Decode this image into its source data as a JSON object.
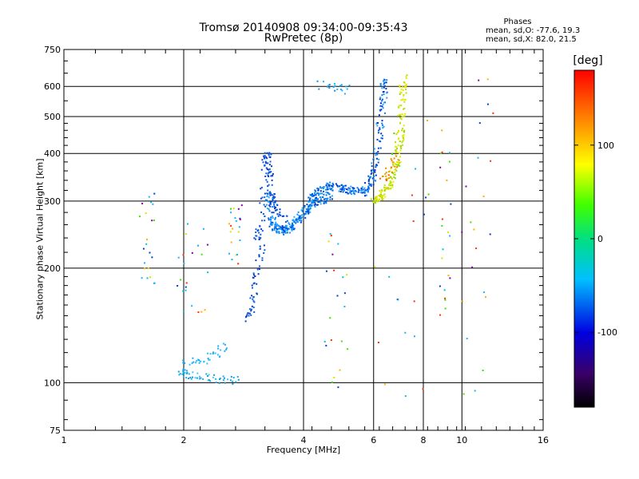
{
  "chart_data": {
    "type": "scatter",
    "title": "Tromsø 20140908 09:34:00-09:35:43",
    "subtitle": "RwPretec (8p)",
    "xlabel": "Frequency [MHz]",
    "ylabel": "Stationary phase Virtual Height [km]",
    "x_scale": "log",
    "y_scale": "log",
    "xlim": [
      1,
      16
    ],
    "ylim": [
      75,
      750
    ],
    "x_ticks": [
      "1",
      "2",
      "4",
      "6",
      "8",
      "10",
      "16"
    ],
    "y_ticks": [
      "750",
      "600",
      "500",
      "400",
      "300",
      "200",
      "100",
      "75"
    ],
    "grid": true,
    "colorbar": {
      "title": "[deg]",
      "range": [
        -180,
        180
      ],
      "tick_labels": [
        "100",
        "0",
        "-100"
      ],
      "tick_values": [
        100,
        0,
        -100
      ]
    },
    "stats": {
      "header": "Phases",
      "line1": "mean, sd,O: -77.6, 19.3",
      "line2": "mean, sd,X:  82.0, 21.5"
    },
    "traces": {
      "o_mode_upper": {
        "f": [
          4.15,
          4.3,
          4.5,
          4.7,
          5.0,
          5.3,
          5.6,
          5.8,
          5.95,
          6.1,
          6.25,
          6.35,
          6.4
        ],
        "h": [
          300,
          315,
          325,
          328,
          325,
          320,
          315,
          322,
          345,
          390,
          470,
          560,
          640
        ]
      },
      "o_mode_lower": {
        "f": [
          3.25,
          3.3,
          3.35,
          3.4,
          3.5,
          3.6,
          3.7,
          3.8,
          3.9,
          4.0,
          4.1,
          4.2,
          4.3,
          4.5,
          4.7
        ],
        "h": [
          320,
          290,
          265,
          255,
          250,
          252,
          255,
          262,
          270,
          278,
          288,
          295,
          300,
          305,
          310
        ]
      },
      "o_mode_cusp": {
        "f": [
          3.05,
          3.1,
          3.15,
          3.2,
          3.22,
          3.25,
          3.28,
          3.3,
          3.35,
          3.45,
          3.6
        ],
        "h": [
          240,
          250,
          280,
          340,
          380,
          395,
          360,
          320,
          295,
          280,
          270
        ]
      },
      "x_mode": {
        "f": [
          6.0,
          6.2,
          6.4,
          6.6,
          6.8,
          6.9,
          7.0,
          7.05,
          7.1,
          7.15
        ],
        "h": [
          300,
          305,
          318,
          335,
          365,
          395,
          440,
          500,
          570,
          640
        ]
      },
      "x_mode_orange": {
        "f": [
          6.3,
          6.5,
          6.7,
          6.85
        ],
        "h": [
          340,
          355,
          370,
          390
        ]
      },
      "e_region_low": {
        "f": [
          1.95,
          2.0,
          2.05,
          2.15,
          2.3,
          2.45,
          2.6,
          2.75
        ],
        "h": [
          107,
          106,
          105,
          104,
          103,
          102,
          101,
          102
        ]
      },
      "e_region_rising": {
        "f": [
          2.0,
          2.1,
          2.2,
          2.3,
          2.4,
          2.5,
          2.55
        ],
        "h": [
          112,
          113,
          114,
          116,
          119,
          123,
          126
        ]
      },
      "f1_rise": {
        "f": [
          2.9,
          2.95,
          3.0,
          3.05,
          3.1,
          3.15
        ],
        "h": [
          145,
          155,
          170,
          190,
          210,
          225
        ]
      },
      "sporadic_high": {
        "f": [
          4.4,
          4.6,
          4.8,
          5.0,
          5.2
        ],
        "h": [
          605,
          600,
          598,
          592,
          588
        ]
      }
    }
  }
}
